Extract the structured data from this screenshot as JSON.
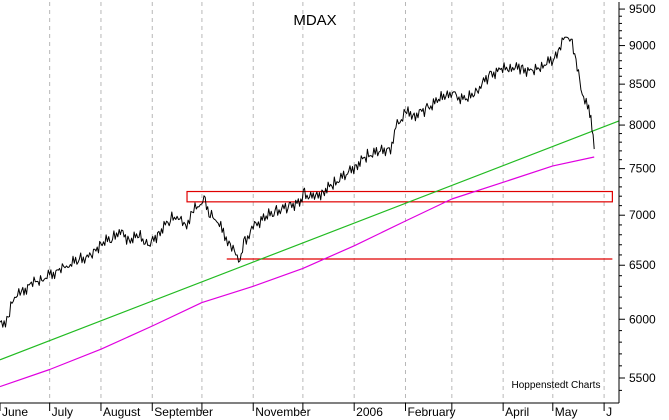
{
  "chart_data": {
    "type": "line",
    "title": "MDAX",
    "credit": "Hoppenstedt Charts",
    "y_scale": "log",
    "ylim": [
      5300,
      9600
    ],
    "y_ticks": [
      5500,
      6000,
      6500,
      7000,
      7500,
      8000,
      8500,
      9000,
      9500
    ],
    "xlim": [
      "2005-06-01",
      "2006-06-10"
    ],
    "x_ticks": [
      {
        "label": "June",
        "date": "2005-06-01"
      },
      {
        "label": "July",
        "date": "2005-07-01"
      },
      {
        "label": "August",
        "date": "2005-08-01"
      },
      {
        "label": "September",
        "date": "2005-09-01"
      },
      {
        "label": "",
        "date": "2005-10-01"
      },
      {
        "label": "November",
        "date": "2005-11-01"
      },
      {
        "label": "",
        "date": "2005-12-01"
      },
      {
        "label": "2006",
        "date": "2006-01-01"
      },
      {
        "label": "February",
        "date": "2006-02-01"
      },
      {
        "label": "",
        "date": "2006-03-01"
      },
      {
        "label": "April",
        "date": "2006-04-01"
      },
      {
        "label": "May",
        "date": "2006-05-01"
      },
      {
        "label": "J",
        "date": "2006-06-01"
      }
    ],
    "grid": "vertical dashed at month boundaries",
    "series": [
      {
        "role": "index",
        "color": "#000000",
        "points": [
          [
            "2005-06-01",
            5950
          ],
          [
            "2005-06-06",
            6000
          ],
          [
            "2005-06-09",
            6200
          ],
          [
            "2005-06-14",
            6240
          ],
          [
            "2005-06-20",
            6320
          ],
          [
            "2005-06-27",
            6380
          ],
          [
            "2005-07-01",
            6400
          ],
          [
            "2005-07-07",
            6450
          ],
          [
            "2005-07-12",
            6500
          ],
          [
            "2005-07-19",
            6560
          ],
          [
            "2005-07-26",
            6580
          ],
          [
            "2005-08-01",
            6720
          ],
          [
            "2005-08-08",
            6760
          ],
          [
            "2005-08-12",
            6840
          ],
          [
            "2005-08-18",
            6750
          ],
          [
            "2005-08-24",
            6790
          ],
          [
            "2005-08-30",
            6690
          ],
          [
            "2005-09-05",
            6820
          ],
          [
            "2005-09-12",
            6960
          ],
          [
            "2005-09-16",
            6990
          ],
          [
            "2005-09-21",
            6880
          ],
          [
            "2005-09-26",
            7050
          ],
          [
            "2005-09-30",
            7120
          ],
          [
            "2005-10-03",
            7150
          ],
          [
            "2005-10-06",
            7000
          ],
          [
            "2005-10-10",
            6950
          ],
          [
            "2005-10-14",
            6820
          ],
          [
            "2005-10-19",
            6660
          ],
          [
            "2005-10-24",
            6570
          ],
          [
            "2005-10-27",
            6730
          ],
          [
            "2005-11-01",
            6880
          ],
          [
            "2005-11-08",
            6980
          ],
          [
            "2005-11-15",
            7040
          ],
          [
            "2005-11-22",
            7090
          ],
          [
            "2005-11-29",
            7140
          ],
          [
            "2005-12-02",
            7220
          ],
          [
            "2005-12-08",
            7180
          ],
          [
            "2005-12-14",
            7260
          ],
          [
            "2005-12-20",
            7340
          ],
          [
            "2005-12-28",
            7450
          ],
          [
            "2006-01-03",
            7550
          ],
          [
            "2006-01-09",
            7650
          ],
          [
            "2006-01-16",
            7690
          ],
          [
            "2006-01-23",
            7730
          ],
          [
            "2006-01-27",
            8000
          ],
          [
            "2006-02-01",
            8150
          ],
          [
            "2006-02-07",
            8120
          ],
          [
            "2006-02-14",
            8200
          ],
          [
            "2006-02-21",
            8300
          ],
          [
            "2006-02-27",
            8400
          ],
          [
            "2006-03-03",
            8350
          ],
          [
            "2006-03-10",
            8300
          ],
          [
            "2006-03-17",
            8450
          ],
          [
            "2006-03-24",
            8620
          ],
          [
            "2006-03-31",
            8680
          ],
          [
            "2006-04-06",
            8720
          ],
          [
            "2006-04-12",
            8700
          ],
          [
            "2006-04-19",
            8650
          ],
          [
            "2006-04-25",
            8750
          ],
          [
            "2006-05-02",
            8820
          ],
          [
            "2006-05-05",
            8950
          ],
          [
            "2006-05-09",
            9150
          ],
          [
            "2006-05-12",
            9080
          ],
          [
            "2006-05-15",
            8800
          ],
          [
            "2006-05-18",
            8450
          ],
          [
            "2006-05-22",
            8200
          ],
          [
            "2006-05-24",
            8100
          ],
          [
            "2006-05-26",
            7720
          ]
        ]
      },
      {
        "role": "moving average",
        "color": "#e000e0",
        "points": [
          [
            "2005-06-01",
            5430
          ],
          [
            "2005-07-01",
            5570
          ],
          [
            "2005-08-01",
            5740
          ],
          [
            "2005-09-01",
            5940
          ],
          [
            "2005-10-01",
            6150
          ],
          [
            "2005-11-01",
            6300
          ],
          [
            "2005-12-01",
            6470
          ],
          [
            "2006-01-01",
            6690
          ],
          [
            "2006-02-01",
            6940
          ],
          [
            "2006-03-01",
            7170
          ],
          [
            "2006-04-01",
            7350
          ],
          [
            "2006-05-01",
            7530
          ],
          [
            "2006-05-26",
            7630
          ]
        ]
      },
      {
        "role": "trend line",
        "color": "#22bb22",
        "points": [
          [
            "2005-06-01",
            5650
          ],
          [
            "2006-06-10",
            8050
          ]
        ]
      }
    ],
    "annotations": [
      {
        "type": "box",
        "color": "#e00000",
        "x": [
          "2005-09-22",
          "2006-06-06"
        ],
        "y": [
          7140,
          7250
        ]
      },
      {
        "type": "hline",
        "color": "#e00000",
        "x": [
          "2005-10-16",
          "2006-06-06"
        ],
        "y": 6560
      }
    ]
  }
}
